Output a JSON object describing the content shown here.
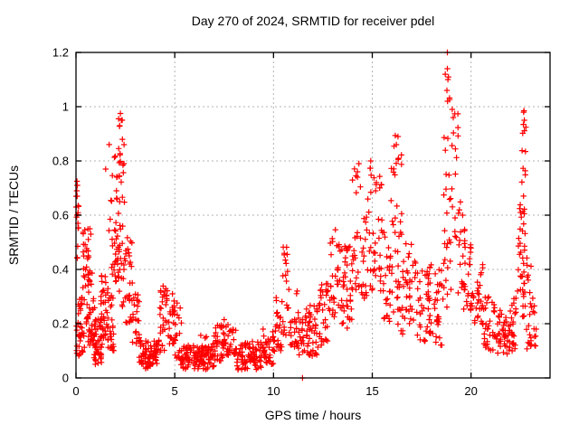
{
  "figure": {
    "background": "#ffffff",
    "text_color": "#000000",
    "border_color": "#000000"
  },
  "chart_data": {
    "type": "scatter",
    "title": "Day 270 of 2024, SRMTID for receiver pdel",
    "xlabel": "GPS time / hours",
    "ylabel": "SRMTID / TECUs",
    "xlim": [
      0,
      24
    ],
    "ylim": [
      0,
      1.2
    ],
    "xticks": [
      0,
      5,
      10,
      15,
      20
    ],
    "xtick_labels": [
      "0",
      "5",
      "10",
      "15",
      "20"
    ],
    "yticks": [
      0,
      0.2,
      0.4,
      0.6,
      0.8,
      1,
      1.2
    ],
    "ytick_labels": [
      "0",
      "0.2",
      "0.4",
      "0.6",
      "0.8",
      "1",
      "1.2"
    ],
    "grid": true,
    "legend": "none",
    "marker": "plus",
    "marker_color": "#ff0000",
    "grid_color": "#b3b3b3",
    "seed": 270,
    "points": [
      [
        11.47,
        0.0
      ],
      [
        18.8,
        1.2
      ],
      [
        18.8,
        1.14
      ],
      [
        18.83,
        1.1
      ],
      [
        18.78,
        1.06
      ],
      [
        18.81,
        1.02
      ],
      [
        19.05,
        0.99
      ],
      [
        19.1,
        0.96
      ],
      [
        2.25,
        0.975
      ],
      [
        2.3,
        0.95
      ],
      [
        2.21,
        0.93
      ],
      [
        22.68,
        0.985
      ],
      [
        22.7,
        0.95
      ],
      [
        16.3,
        0.89
      ],
      [
        16.22,
        0.86
      ],
      [
        14.92,
        0.8
      ],
      [
        14.32,
        0.79
      ],
      [
        14.25,
        0.76
      ],
      [
        0.05,
        0.725
      ],
      [
        0.07,
        0.71
      ],
      [
        0.04,
        0.69
      ],
      [
        0.06,
        0.67
      ],
      [
        0.05,
        0.6
      ],
      [
        0.1,
        0.57
      ],
      [
        0.7,
        0.55
      ],
      [
        0.75,
        0.53
      ],
      [
        1.5,
        0.77
      ],
      [
        7.5,
        0.215
      ]
    ],
    "clusters": [
      {
        "x": [
          0.0,
          0.15
        ],
        "y": [
          0.55,
          0.73
        ],
        "n": 10,
        "bias": 0.8
      },
      {
        "x": [
          0.0,
          0.18
        ],
        "y": [
          0.08,
          0.28
        ],
        "n": 12,
        "bias": 1.2
      },
      {
        "x": [
          0.02,
          0.1
        ],
        "y": [
          0.4,
          0.5
        ],
        "n": 3,
        "bias": 1.0
      },
      {
        "x": [
          0.15,
          0.45
        ],
        "y": [
          0.08,
          0.3
        ],
        "n": 28,
        "bias": 1.4
      },
      {
        "x": [
          0.35,
          0.65
        ],
        "y": [
          0.2,
          0.57
        ],
        "n": 32,
        "bias": 1.2
      },
      {
        "x": [
          0.6,
          0.95
        ],
        "y": [
          0.12,
          0.42
        ],
        "n": 38,
        "bias": 1.3
      },
      {
        "x": [
          0.9,
          1.3
        ],
        "y": [
          0.05,
          0.22
        ],
        "n": 45,
        "bias": 1.2
      },
      {
        "x": [
          1.25,
          1.65
        ],
        "y": [
          0.12,
          0.38
        ],
        "n": 38,
        "bias": 1.2
      },
      {
        "x": [
          1.6,
          1.95
        ],
        "y": [
          0.1,
          0.32
        ],
        "n": 28,
        "bias": 1.3
      },
      {
        "x": [
          1.75,
          2.1
        ],
        "y": [
          0.3,
          0.62
        ],
        "n": 18,
        "bias": 1.0
      },
      {
        "x": [
          1.55,
          2.15
        ],
        "y": [
          0.5,
          0.87
        ],
        "n": 14,
        "bias": 0.9
      },
      {
        "x": [
          2.15,
          2.45
        ],
        "y": [
          0.6,
          0.97
        ],
        "n": 20,
        "bias": 0.9
      },
      {
        "x": [
          2.1,
          2.5
        ],
        "y": [
          0.25,
          0.6
        ],
        "n": 28,
        "bias": 1.1
      },
      {
        "x": [
          2.5,
          2.85
        ],
        "y": [
          0.2,
          0.52
        ],
        "n": 26,
        "bias": 1.1
      },
      {
        "x": [
          2.85,
          3.2
        ],
        "y": [
          0.12,
          0.32
        ],
        "n": 24,
        "bias": 1.2
      },
      {
        "x": [
          3.2,
          4.3
        ],
        "y": [
          0.05,
          0.14
        ],
        "n": 70,
        "bias": 1.1
      },
      {
        "x": [
          3.5,
          3.95
        ],
        "y": [
          0.03,
          0.09
        ],
        "n": 16,
        "bias": 1.0
      },
      {
        "x": [
          4.25,
          4.65
        ],
        "y": [
          0.1,
          0.34
        ],
        "n": 28,
        "bias": 1.0
      },
      {
        "x": [
          4.6,
          5.0
        ],
        "y": [
          0.12,
          0.35
        ],
        "n": 24,
        "bias": 1.1
      },
      {
        "x": [
          4.95,
          5.35
        ],
        "y": [
          0.07,
          0.28
        ],
        "n": 20,
        "bias": 1.3
      },
      {
        "x": [
          5.3,
          7.0
        ],
        "y": [
          0.03,
          0.12
        ],
        "n": 110,
        "bias": 1.1
      },
      {
        "x": [
          6.3,
          6.95
        ],
        "y": [
          0.05,
          0.16
        ],
        "n": 22,
        "bias": 1.1
      },
      {
        "x": [
          7.0,
          7.55
        ],
        "y": [
          0.06,
          0.2
        ],
        "n": 32,
        "bias": 1.2
      },
      {
        "x": [
          7.4,
          8.1
        ],
        "y": [
          0.08,
          0.22
        ],
        "n": 30,
        "bias": 1.3
      },
      {
        "x": [
          8.1,
          9.4
        ],
        "y": [
          0.03,
          0.14
        ],
        "n": 80,
        "bias": 1.1
      },
      {
        "x": [
          9.4,
          10.1
        ],
        "y": [
          0.05,
          0.18
        ],
        "n": 42,
        "bias": 1.2
      },
      {
        "x": [
          10.1,
          10.45
        ],
        "y": [
          0.1,
          0.3
        ],
        "n": 22,
        "bias": 1.2
      },
      {
        "x": [
          10.45,
          10.75
        ],
        "y": [
          0.15,
          0.52
        ],
        "n": 18,
        "bias": 1.1
      },
      {
        "x": [
          10.75,
          11.2
        ],
        "y": [
          0.1,
          0.38
        ],
        "n": 22,
        "bias": 1.3
      },
      {
        "x": [
          11.2,
          12.3
        ],
        "y": [
          0.08,
          0.28
        ],
        "n": 65,
        "bias": 1.3
      },
      {
        "x": [
          12.3,
          12.85
        ],
        "y": [
          0.12,
          0.35
        ],
        "n": 32,
        "bias": 1.2
      },
      {
        "x": [
          12.85,
          13.15
        ],
        "y": [
          0.18,
          0.55
        ],
        "n": 18,
        "bias": 1.1
      },
      {
        "x": [
          13.15,
          13.6
        ],
        "y": [
          0.2,
          0.5
        ],
        "n": 24,
        "bias": 1.2
      },
      {
        "x": [
          13.6,
          14.05
        ],
        "y": [
          0.18,
          0.5
        ],
        "n": 28,
        "bias": 1.2
      },
      {
        "x": [
          13.95,
          14.45
        ],
        "y": [
          0.3,
          0.79
        ],
        "n": 22,
        "bias": 1.0
      },
      {
        "x": [
          14.45,
          14.75
        ],
        "y": [
          0.25,
          0.6
        ],
        "n": 18,
        "bias": 1.1
      },
      {
        "x": [
          14.75,
          15.05
        ],
        "y": [
          0.3,
          0.8
        ],
        "n": 16,
        "bias": 1.0
      },
      {
        "x": [
          15.05,
          15.55
        ],
        "y": [
          0.3,
          0.75
        ],
        "n": 28,
        "bias": 1.1
      },
      {
        "x": [
          15.55,
          15.95
        ],
        "y": [
          0.2,
          0.55
        ],
        "n": 24,
        "bias": 1.2
      },
      {
        "x": [
          15.95,
          16.55
        ],
        "y": [
          0.3,
          0.9
        ],
        "n": 32,
        "bias": 1.0
      },
      {
        "x": [
          16.05,
          16.55
        ],
        "y": [
          0.15,
          0.35
        ],
        "n": 14,
        "bias": 1.0
      },
      {
        "x": [
          16.55,
          17.2
        ],
        "y": [
          0.2,
          0.5
        ],
        "n": 32,
        "bias": 1.2
      },
      {
        "x": [
          17.2,
          18.3
        ],
        "y": [
          0.12,
          0.42
        ],
        "n": 58,
        "bias": 1.3
      },
      {
        "x": [
          18.3,
          18.6
        ],
        "y": [
          0.12,
          0.4
        ],
        "n": 16,
        "bias": 1.2
      },
      {
        "x": [
          18.62,
          18.92
        ],
        "y": [
          0.5,
          1.18
        ],
        "n": 14,
        "bias": 0.9
      },
      {
        "x": [
          18.6,
          19.0
        ],
        "y": [
          0.25,
          0.55
        ],
        "n": 14,
        "bias": 1.0
      },
      {
        "x": [
          18.95,
          19.35
        ],
        "y": [
          0.5,
          1.0
        ],
        "n": 16,
        "bias": 0.9
      },
      {
        "x": [
          19.3,
          19.7
        ],
        "y": [
          0.3,
          0.65
        ],
        "n": 20,
        "bias": 1.1
      },
      {
        "x": [
          19.6,
          20.1
        ],
        "y": [
          0.25,
          0.5
        ],
        "n": 24,
        "bias": 1.2
      },
      {
        "x": [
          20.1,
          20.6
        ],
        "y": [
          0.2,
          0.42
        ],
        "n": 26,
        "bias": 1.2
      },
      {
        "x": [
          20.6,
          21.2
        ],
        "y": [
          0.1,
          0.3
        ],
        "n": 32,
        "bias": 1.3
      },
      {
        "x": [
          21.2,
          21.95
        ],
        "y": [
          0.08,
          0.25
        ],
        "n": 42,
        "bias": 1.2
      },
      {
        "x": [
          21.95,
          22.3
        ],
        "y": [
          0.1,
          0.33
        ],
        "n": 24,
        "bias": 1.2
      },
      {
        "x": [
          22.3,
          22.75
        ],
        "y": [
          0.3,
          0.65
        ],
        "n": 26,
        "bias": 0.9
      },
      {
        "x": [
          22.55,
          22.8
        ],
        "y": [
          0.65,
          0.99
        ],
        "n": 12,
        "bias": 1.0
      },
      {
        "x": [
          22.5,
          22.8
        ],
        "y": [
          0.2,
          0.4
        ],
        "n": 12,
        "bias": 1.2
      },
      {
        "x": [
          22.8,
          23.05
        ],
        "y": [
          0.07,
          0.5
        ],
        "n": 18,
        "bias": 1.0
      },
      {
        "x": [
          23.0,
          23.3
        ],
        "y": [
          0.1,
          0.3
        ],
        "n": 12,
        "bias": 1.2
      }
    ]
  }
}
